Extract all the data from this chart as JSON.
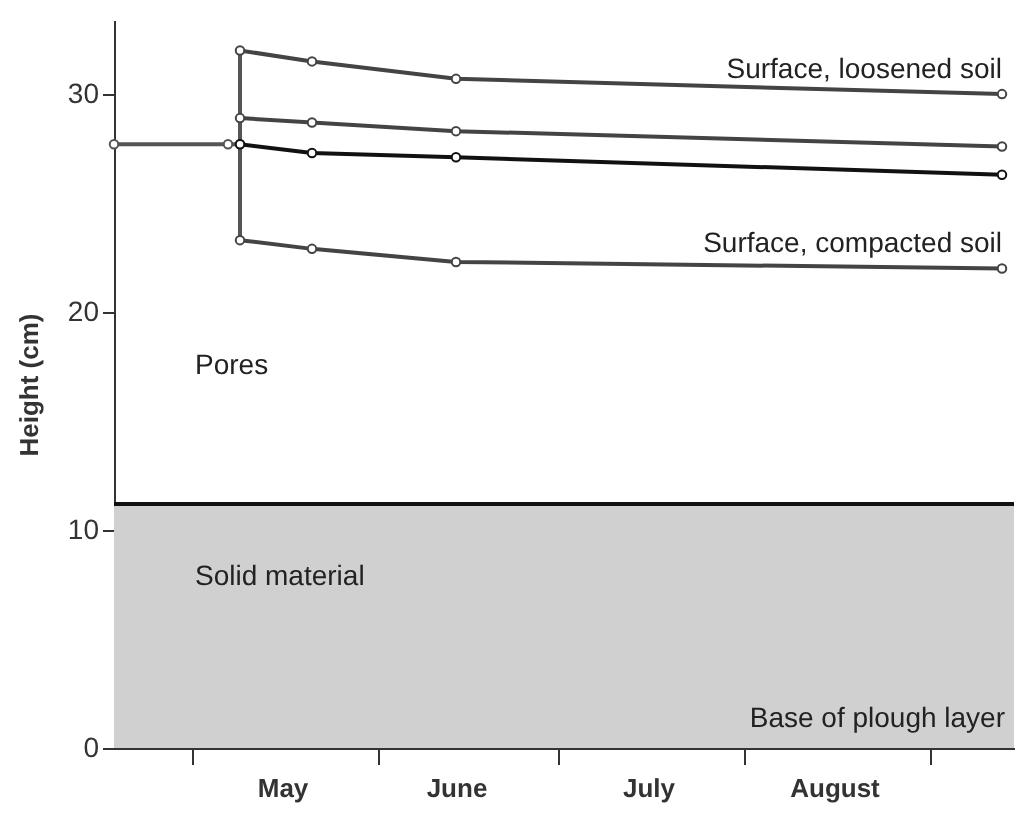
{
  "chart_data": {
    "type": "line",
    "ylabel": "Height (cm)",
    "xlim": [
      "--04-18",
      "--09-15"
    ],
    "ylim": [
      0,
      33.4
    ],
    "yticks": [
      0,
      10,
      20,
      30
    ],
    "xticks": [
      {
        "value": "--05-01",
        "label": null
      },
      {
        "value": "--06-01",
        "label": null
      },
      {
        "value": "--07-01",
        "label": null
      },
      {
        "value": "--08-01",
        "label": null
      },
      {
        "value": "--09-01",
        "label": null
      },
      {
        "value": "--05-16",
        "label": "May"
      },
      {
        "value": "--06-14",
        "label": "June"
      },
      {
        "value": "--07-16",
        "label": "July"
      },
      {
        "value": "--08-16",
        "label": "August"
      }
    ],
    "grid": false,
    "marker": "circle",
    "series": [
      {
        "type": "area",
        "color": "#d0d0d0",
        "marker": "none",
        "x": [
          "--04-18",
          "--09-15"
        ],
        "values": [
          11.2,
          11.2
        ]
      },
      {
        "color": "#555555",
        "x": [
          "--04-18",
          "--05-07",
          "--05-09"
        ],
        "values": [
          27.7,
          27.7,
          27.7
        ]
      },
      {
        "color": "#555555",
        "marker": "none",
        "x": [
          "--05-09",
          "--05-09"
        ],
        "values": [
          32.0,
          23.3
        ]
      },
      {
        "name": "Surface, loosened soil",
        "color": "#444444",
        "x": [
          "--05-09",
          "--05-21",
          "--06-14",
          "--09-13"
        ],
        "values": [
          32.0,
          31.5,
          30.7,
          30.0
        ]
      },
      {
        "color": "#444444",
        "x": [
          "--05-09",
          "--05-21",
          "--06-14",
          "--09-13"
        ],
        "values": [
          28.9,
          28.7,
          28.3,
          27.6
        ]
      },
      {
        "color": "#111111",
        "x": [
          "--05-09",
          "--05-21",
          "--06-14",
          "--09-13"
        ],
        "values": [
          27.7,
          27.3,
          27.1,
          26.3
        ]
      },
      {
        "name": "Surface, compacted soil",
        "color": "#444444",
        "x": [
          "--05-09",
          "--05-21",
          "--06-14",
          "--09-13"
        ],
        "values": [
          23.3,
          22.9,
          22.3,
          22.0
        ]
      }
    ],
    "annotations": [
      "Pores",
      "Solid material",
      "Base of plough layer"
    ]
  }
}
